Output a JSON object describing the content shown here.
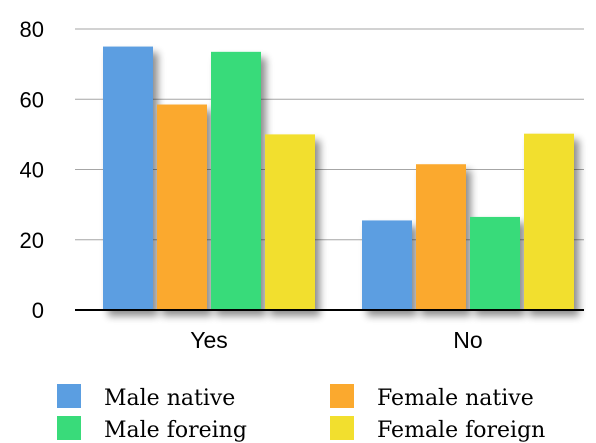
{
  "chart_data": {
    "type": "bar",
    "title": "",
    "xlabel": "",
    "ylabel": "",
    "categories": [
      "Yes",
      "No"
    ],
    "series": [
      {
        "name": "Male native",
        "values": [
          75,
          25.5
        ],
        "color": "#5b9ee1"
      },
      {
        "name": "Female native",
        "values": [
          58.5,
          41.5
        ],
        "color": "#fba92e"
      },
      {
        "name": "Male foreing",
        "values": [
          73.5,
          26.5
        ],
        "color": "#39db7a"
      },
      {
        "name": "Female foreign",
        "values": [
          50,
          50.2
        ],
        "color": "#f2df2e"
      }
    ],
    "ylim": [
      0,
      80
    ],
    "yticks": [
      0,
      20,
      40,
      60,
      80
    ],
    "grid": true,
    "legend_position": "bottom"
  }
}
